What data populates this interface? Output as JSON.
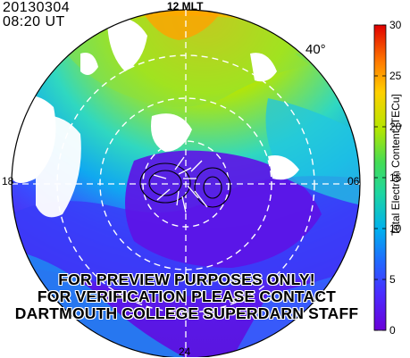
{
  "header": {
    "date": "20130304",
    "time": "08:20 UT"
  },
  "map": {
    "latitude_label": "40°",
    "mlt_top": "12 MLT",
    "mlt_right": "06",
    "mlt_bottom": "24",
    "mlt_left": "18"
  },
  "watermark": {
    "line1": "FOR PREVIEW PURPOSES ONLY!",
    "line2": "FOR VERIFICATION PLEASE CONTACT",
    "line3": "DARTMOUTH COLLEGE SUPERDARN STAFF"
  },
  "chart_data": {
    "type": "heatmap",
    "title": "",
    "colorbar": {
      "label": "Total Electron Content [TECu]",
      "min": 0,
      "max": 30,
      "ticks": [
        0,
        5,
        10,
        15,
        20,
        25,
        30
      ],
      "tick_labels": [
        "0",
        "5",
        "10",
        "15",
        "20",
        "25",
        "30"
      ]
    },
    "colors": {
      "c0": "#6a00d8",
      "c5": "#3250ff",
      "c10": "#00b8e6",
      "c15": "#3fdc72",
      "c20": "#c8e600",
      "c25": "#ffa500",
      "c30": "#e01000"
    }
  }
}
